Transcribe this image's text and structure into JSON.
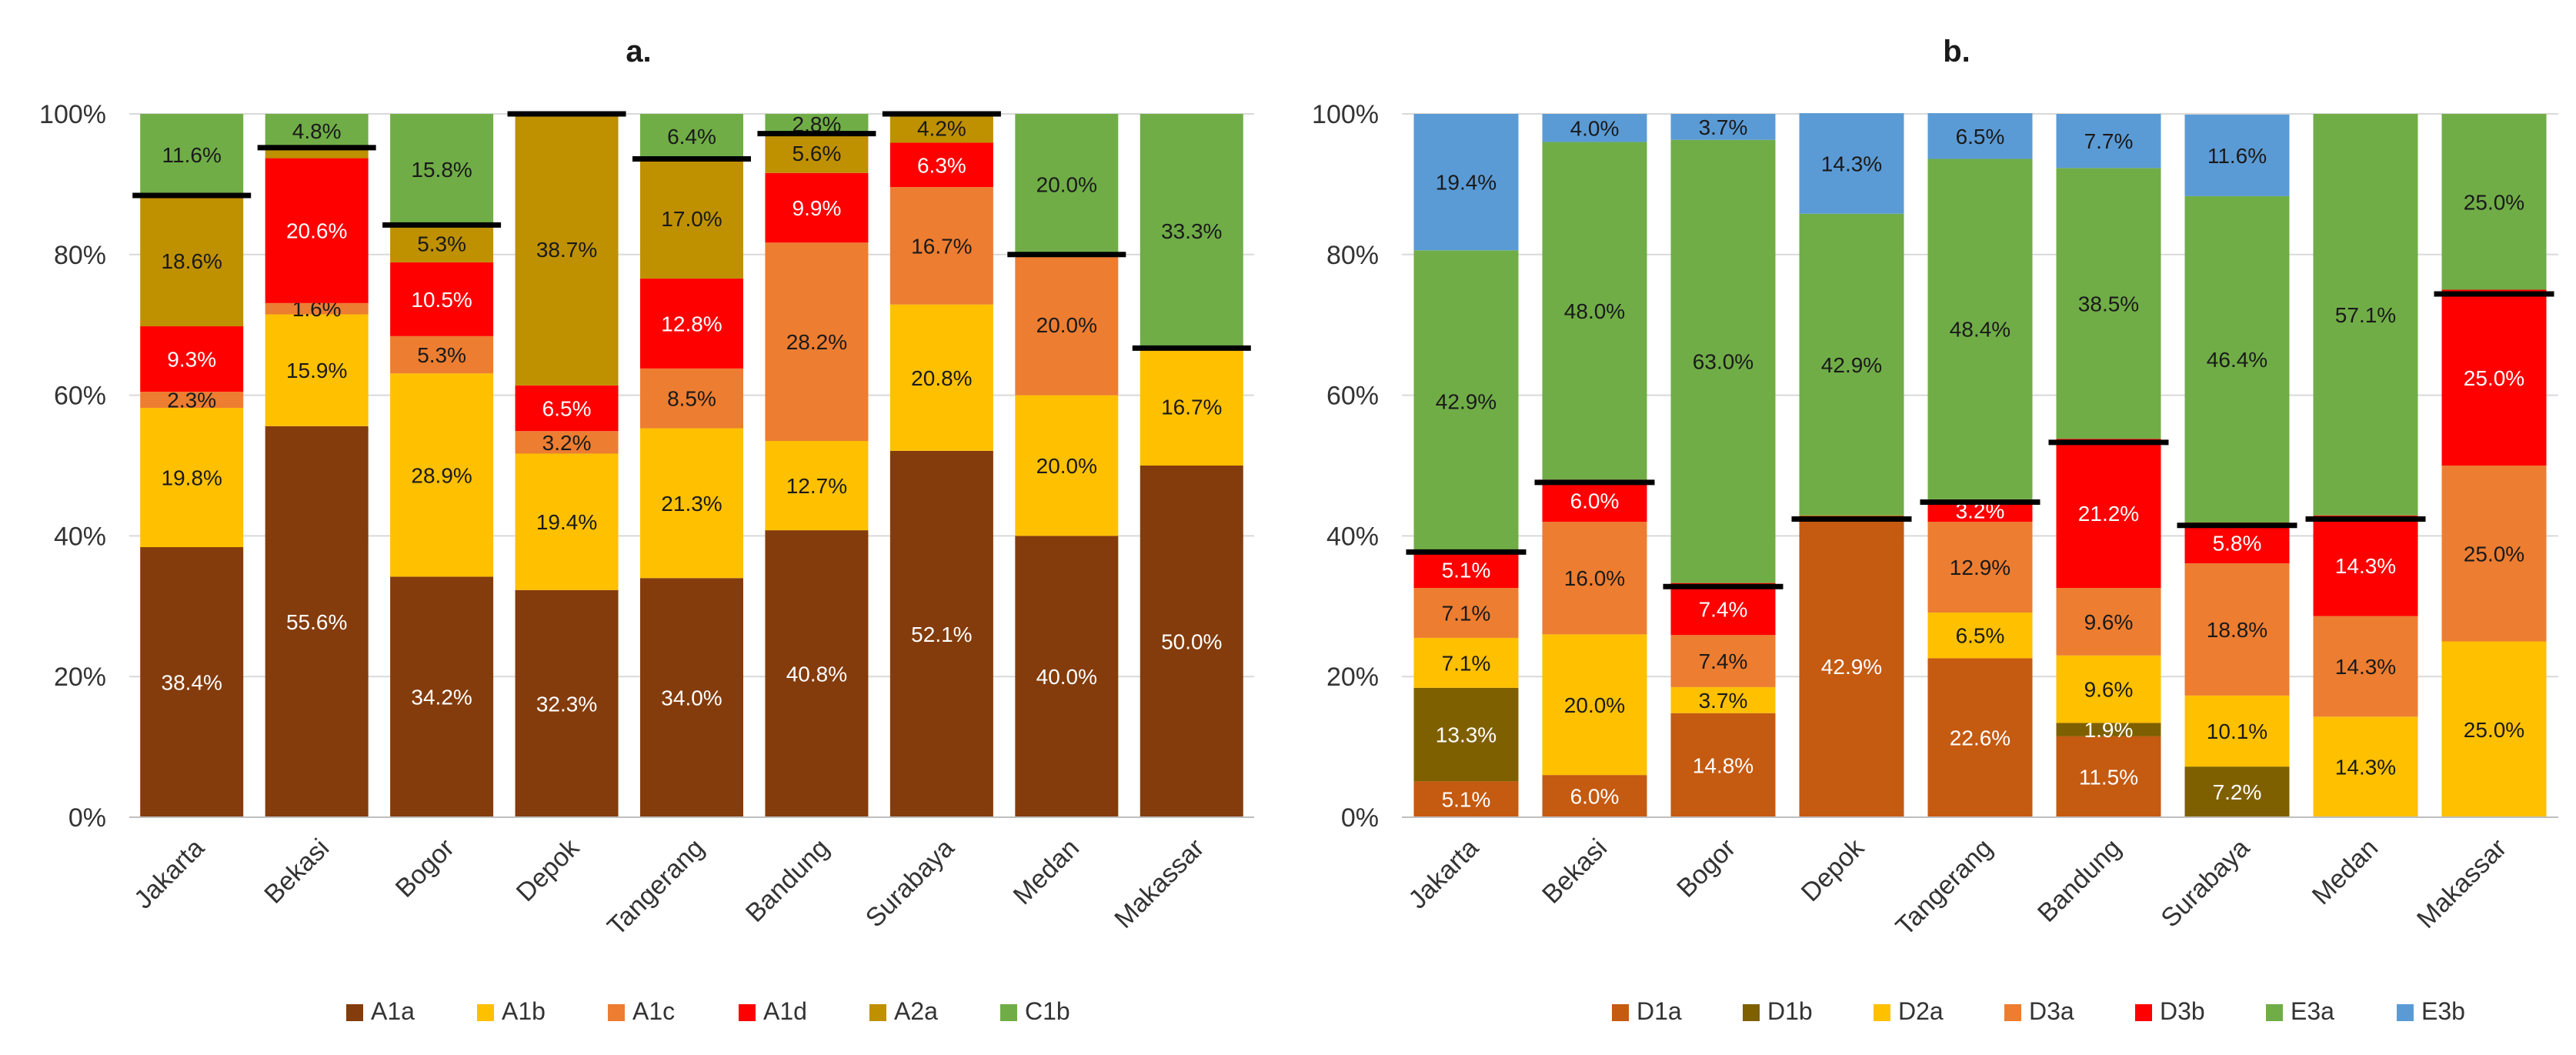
{
  "chart_data": [
    {
      "panel": "a.",
      "type": "bar",
      "stacked": true,
      "categories": [
        "Jakarta",
        "Bekasi",
        "Bogor",
        "Depok",
        "Tangerang",
        "Bandung",
        "Surabaya",
        "Medan",
        "Makassar"
      ],
      "yticks": [
        "0%",
        "20%",
        "40%",
        "60%",
        "80%",
        "100%"
      ],
      "ylim": [
        0,
        100
      ],
      "legend_position": "bottom",
      "series": [
        {
          "name": "A1a",
          "color": "#843C0C",
          "values": [
            38.4,
            55.6,
            34.2,
            32.3,
            34.0,
            40.8,
            52.1,
            40.0,
            50.0
          ],
          "labels": [
            "38.4%",
            "55.6%",
            "34.2%",
            "32.3%",
            "34.0%",
            "40.8%",
            "52.1%",
            "40.0%",
            "50.0%"
          ]
        },
        {
          "name": "A1b",
          "color": "#FFC000",
          "values": [
            19.8,
            15.9,
            28.9,
            19.4,
            21.3,
            12.7,
            20.8,
            20.0,
            16.7
          ],
          "labels": [
            "19.8%",
            "15.9%",
            "28.9%",
            "19.4%",
            "21.3%",
            "12.7%",
            "20.8%",
            "20.0%",
            "16.7%"
          ]
        },
        {
          "name": "A1c",
          "color": "#ED7D31",
          "values": [
            2.3,
            1.6,
            5.3,
            3.2,
            8.5,
            28.2,
            16.7,
            20.0,
            0
          ],
          "labels": [
            "2.3%",
            "1.6%",
            "5.3%",
            "3.2%",
            "8.5%",
            "28.2%",
            "16.7%",
            "20.0%",
            ""
          ]
        },
        {
          "name": "A1d",
          "color": "#FF0000",
          "values": [
            9.3,
            20.6,
            10.5,
            6.5,
            12.8,
            9.9,
            6.3,
            0,
            0
          ],
          "labels": [
            "9.3%",
            "20.6%",
            "10.5%",
            "6.5%",
            "12.8%",
            "9.9%",
            "6.3%",
            "",
            ""
          ]
        },
        {
          "name": "A2a",
          "color": "#BF9000",
          "values": [
            18.6,
            1.5,
            5.3,
            38.7,
            17.0,
            5.6,
            4.2,
            0,
            0
          ],
          "labels": [
            "18.6%",
            "",
            "5.3%",
            "38.7%",
            "17.0%",
            "5.6%",
            "4.2%",
            "",
            ""
          ]
        },
        {
          "name": "C1b",
          "color": "#70AD47",
          "values": [
            11.6,
            4.8,
            15.8,
            0,
            6.4,
            2.8,
            0,
            20.0,
            33.3
          ],
          "labels": [
            "11.6%",
            "4.8%",
            "15.8%",
            "",
            "6.4%",
            "2.8%",
            "",
            "20.0%",
            "33.3%"
          ]
        }
      ],
      "label_colors": {
        "A1a": "#ffffff",
        "A1b": "#1a1a1a",
        "A1c": "#1a1a1a",
        "A1d": "#ffffff",
        "A2a": "#1a1a1a",
        "C1b": "#1a1a1a"
      },
      "threshold_lines": [
        88.4,
        95.2,
        84.2,
        100.0,
        93.6,
        97.2,
        100.0,
        80.0,
        66.7
      ]
    },
    {
      "panel": "b.",
      "type": "bar",
      "stacked": true,
      "categories": [
        "Jakarta",
        "Bekasi",
        "Bogor",
        "Depok",
        "Tangerang",
        "Bandung",
        "Surabaya",
        "Medan",
        "Makassar"
      ],
      "yticks": [
        "0%",
        "20%",
        "40%",
        "60%",
        "80%",
        "100%"
      ],
      "ylim": [
        0,
        100
      ],
      "legend_position": "bottom",
      "series": [
        {
          "name": "D1a",
          "color": "#C55A11",
          "values": [
            5.1,
            6.0,
            14.8,
            42.9,
            22.6,
            11.5,
            0,
            0,
            0
          ],
          "labels": [
            "5.1%",
            "6.0%",
            "14.8%",
            "42.9%",
            "22.6%",
            "11.5%",
            "",
            "",
            ""
          ]
        },
        {
          "name": "D1b",
          "color": "#7F6000",
          "values": [
            13.3,
            0,
            0,
            0,
            0,
            1.9,
            7.2,
            0,
            0
          ],
          "labels": [
            "13.3%",
            "",
            "",
            "",
            "",
            "1.9%",
            "7.2%",
            "",
            ""
          ]
        },
        {
          "name": "D2a",
          "color": "#FFC000",
          "values": [
            7.1,
            20.0,
            3.7,
            0,
            6.5,
            9.6,
            10.1,
            14.3,
            25.0
          ],
          "labels": [
            "7.1%",
            "20.0%",
            "3.7%",
            "",
            "6.5%",
            "9.6%",
            "10.1%",
            "14.3%",
            "25.0%"
          ]
        },
        {
          "name": "D3a",
          "color": "#ED7D31",
          "values": [
            7.1,
            16.0,
            7.4,
            0,
            12.9,
            9.6,
            18.8,
            14.3,
            25.0
          ],
          "labels": [
            "7.1%",
            "16.0%",
            "7.4%",
            "",
            "12.9%",
            "9.6%",
            "18.8%",
            "14.3%",
            "25.0%"
          ]
        },
        {
          "name": "D3b",
          "color": "#FF0000",
          "values": [
            5.1,
            6.0,
            7.4,
            0,
            3.2,
            21.2,
            5.8,
            14.3,
            25.0
          ],
          "labels": [
            "5.1%",
            "6.0%",
            "7.4%",
            "",
            "3.2%",
            "21.2%",
            "5.8%",
            "14.3%",
            "25.0%"
          ]
        },
        {
          "name": "E3a",
          "color": "#70AD47",
          "values": [
            42.9,
            48.0,
            63.0,
            42.9,
            48.4,
            38.5,
            46.4,
            57.1,
            25.0
          ],
          "labels": [
            "42.9%",
            "48.0%",
            "63.0%",
            "42.9%",
            "48.4%",
            "38.5%",
            "46.4%",
            "57.1%",
            "25.0%"
          ]
        },
        {
          "name": "E3b",
          "color": "#5B9BD5",
          "values": [
            19.4,
            4.0,
            3.7,
            14.3,
            6.5,
            7.7,
            11.6,
            0,
            0
          ],
          "labels": [
            "19.4%",
            "4.0%",
            "3.7%",
            "14.3%",
            "6.5%",
            "7.7%",
            "11.6%",
            "",
            ""
          ]
        }
      ],
      "label_colors": {
        "D1a": "#ffffff",
        "D1b": "#ffffff",
        "D2a": "#1a1a1a",
        "D3a": "#1a1a1a",
        "D3b": "#ffffff",
        "E3a": "#1a1a1a",
        "E3b": "#1a1a1a"
      },
      "threshold_lines": [
        37.7,
        47.6,
        32.8,
        42.4,
        44.8,
        53.3,
        41.5,
        42.4,
        74.4
      ]
    }
  ]
}
